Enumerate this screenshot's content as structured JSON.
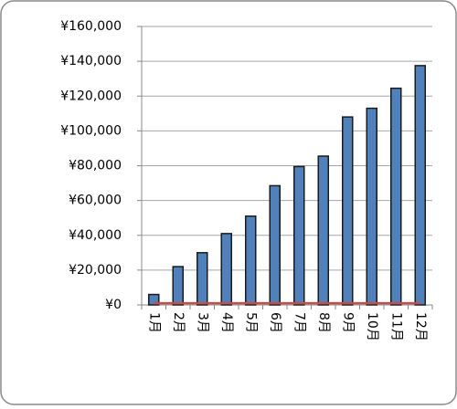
{
  "chart_data": {
    "type": "bar",
    "categories": [
      "1月",
      "2月",
      "3月",
      "4月",
      "5月",
      "6月",
      "7月",
      "8月",
      "9月",
      "10月",
      "11月",
      "12月"
    ],
    "series": [
      {
        "type": "bar",
        "color": "#4f81bd",
        "values": [
          6000,
          22000,
          30000,
          41000,
          51000,
          68500,
          79500,
          85500,
          108000,
          113000,
          124500,
          137500
        ]
      },
      {
        "type": "line",
        "color": "#c0504d",
        "values": [
          1000,
          1000,
          1000,
          1000,
          1000,
          1000,
          1000,
          1000,
          1000,
          1000,
          1000,
          1000
        ]
      }
    ],
    "ylim": [
      0,
      160000
    ],
    "yticks": [
      {
        "value": 0,
        "label": "¥0"
      },
      {
        "value": 20000,
        "label": "¥20,000"
      },
      {
        "value": 40000,
        "label": "¥40,000"
      },
      {
        "value": 60000,
        "label": "¥60,000"
      },
      {
        "value": 80000,
        "label": "¥80,000"
      },
      {
        "value": 100000,
        "label": "¥100,000"
      },
      {
        "value": 120000,
        "label": "¥120,000"
      },
      {
        "value": 140000,
        "label": "¥140,000"
      },
      {
        "value": 160000,
        "label": "¥160,000"
      }
    ],
    "grid": true
  }
}
